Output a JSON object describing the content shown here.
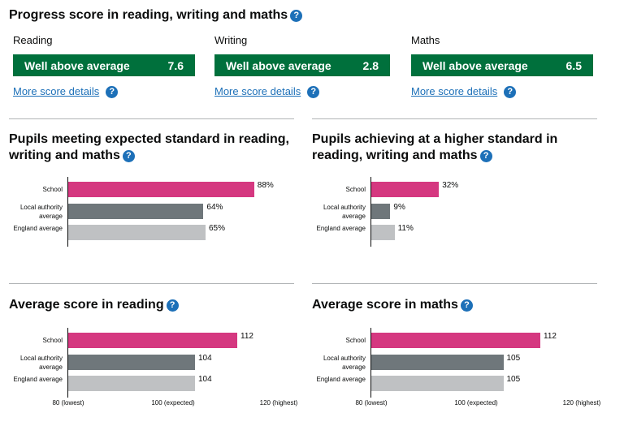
{
  "progress": {
    "title": "Progress score in reading, writing and maths",
    "help_icon": "question-icon",
    "subjects": [
      {
        "name": "Reading",
        "band": "Well above average",
        "score": "7.6",
        "link": "More score details"
      },
      {
        "name": "Writing",
        "band": "Well above average",
        "score": "2.8",
        "link": "More score details"
      },
      {
        "name": "Maths",
        "band": "Well above average",
        "score": "6.5",
        "link": "More score details"
      }
    ]
  },
  "colors": {
    "school": "#d53880",
    "local": "#6f777b",
    "england": "#bfc1c3",
    "accent_green": "#00703c",
    "link_blue": "#1d70b8"
  },
  "chart_data": [
    {
      "type": "bar",
      "title": "Pupils meeting expected standard in reading, writing and maths",
      "categories": [
        "School",
        "Local authority average",
        "England average"
      ],
      "values": [
        88,
        64,
        65
      ],
      "labels": [
        "88%",
        "64%",
        "65%"
      ],
      "xlim": [
        0,
        100
      ]
    },
    {
      "type": "bar",
      "title": "Pupils achieving at a higher standard in reading, writing and maths",
      "categories": [
        "School",
        "Local authority average",
        "England average"
      ],
      "values": [
        32,
        9,
        11
      ],
      "labels": [
        "32%",
        "9%",
        "11%"
      ],
      "xlim": [
        0,
        100
      ]
    },
    {
      "type": "bar",
      "title": "Average score in reading",
      "categories": [
        "School",
        "Local authority average",
        "England average"
      ],
      "values": [
        112,
        104,
        104
      ],
      "labels": [
        "112",
        "104",
        "104"
      ],
      "xlim": [
        80,
        120
      ],
      "ticks": [
        "80 (lowest)",
        "100 (expected)",
        "120 (highest)"
      ]
    },
    {
      "type": "bar",
      "title": "Average score in maths",
      "categories": [
        "School",
        "Local authority average",
        "England average"
      ],
      "values": [
        112,
        105,
        105
      ],
      "labels": [
        "112",
        "105",
        "105"
      ],
      "xlim": [
        80,
        120
      ],
      "ticks": [
        "80 (lowest)",
        "100 (expected)",
        "120 (highest)"
      ]
    }
  ]
}
